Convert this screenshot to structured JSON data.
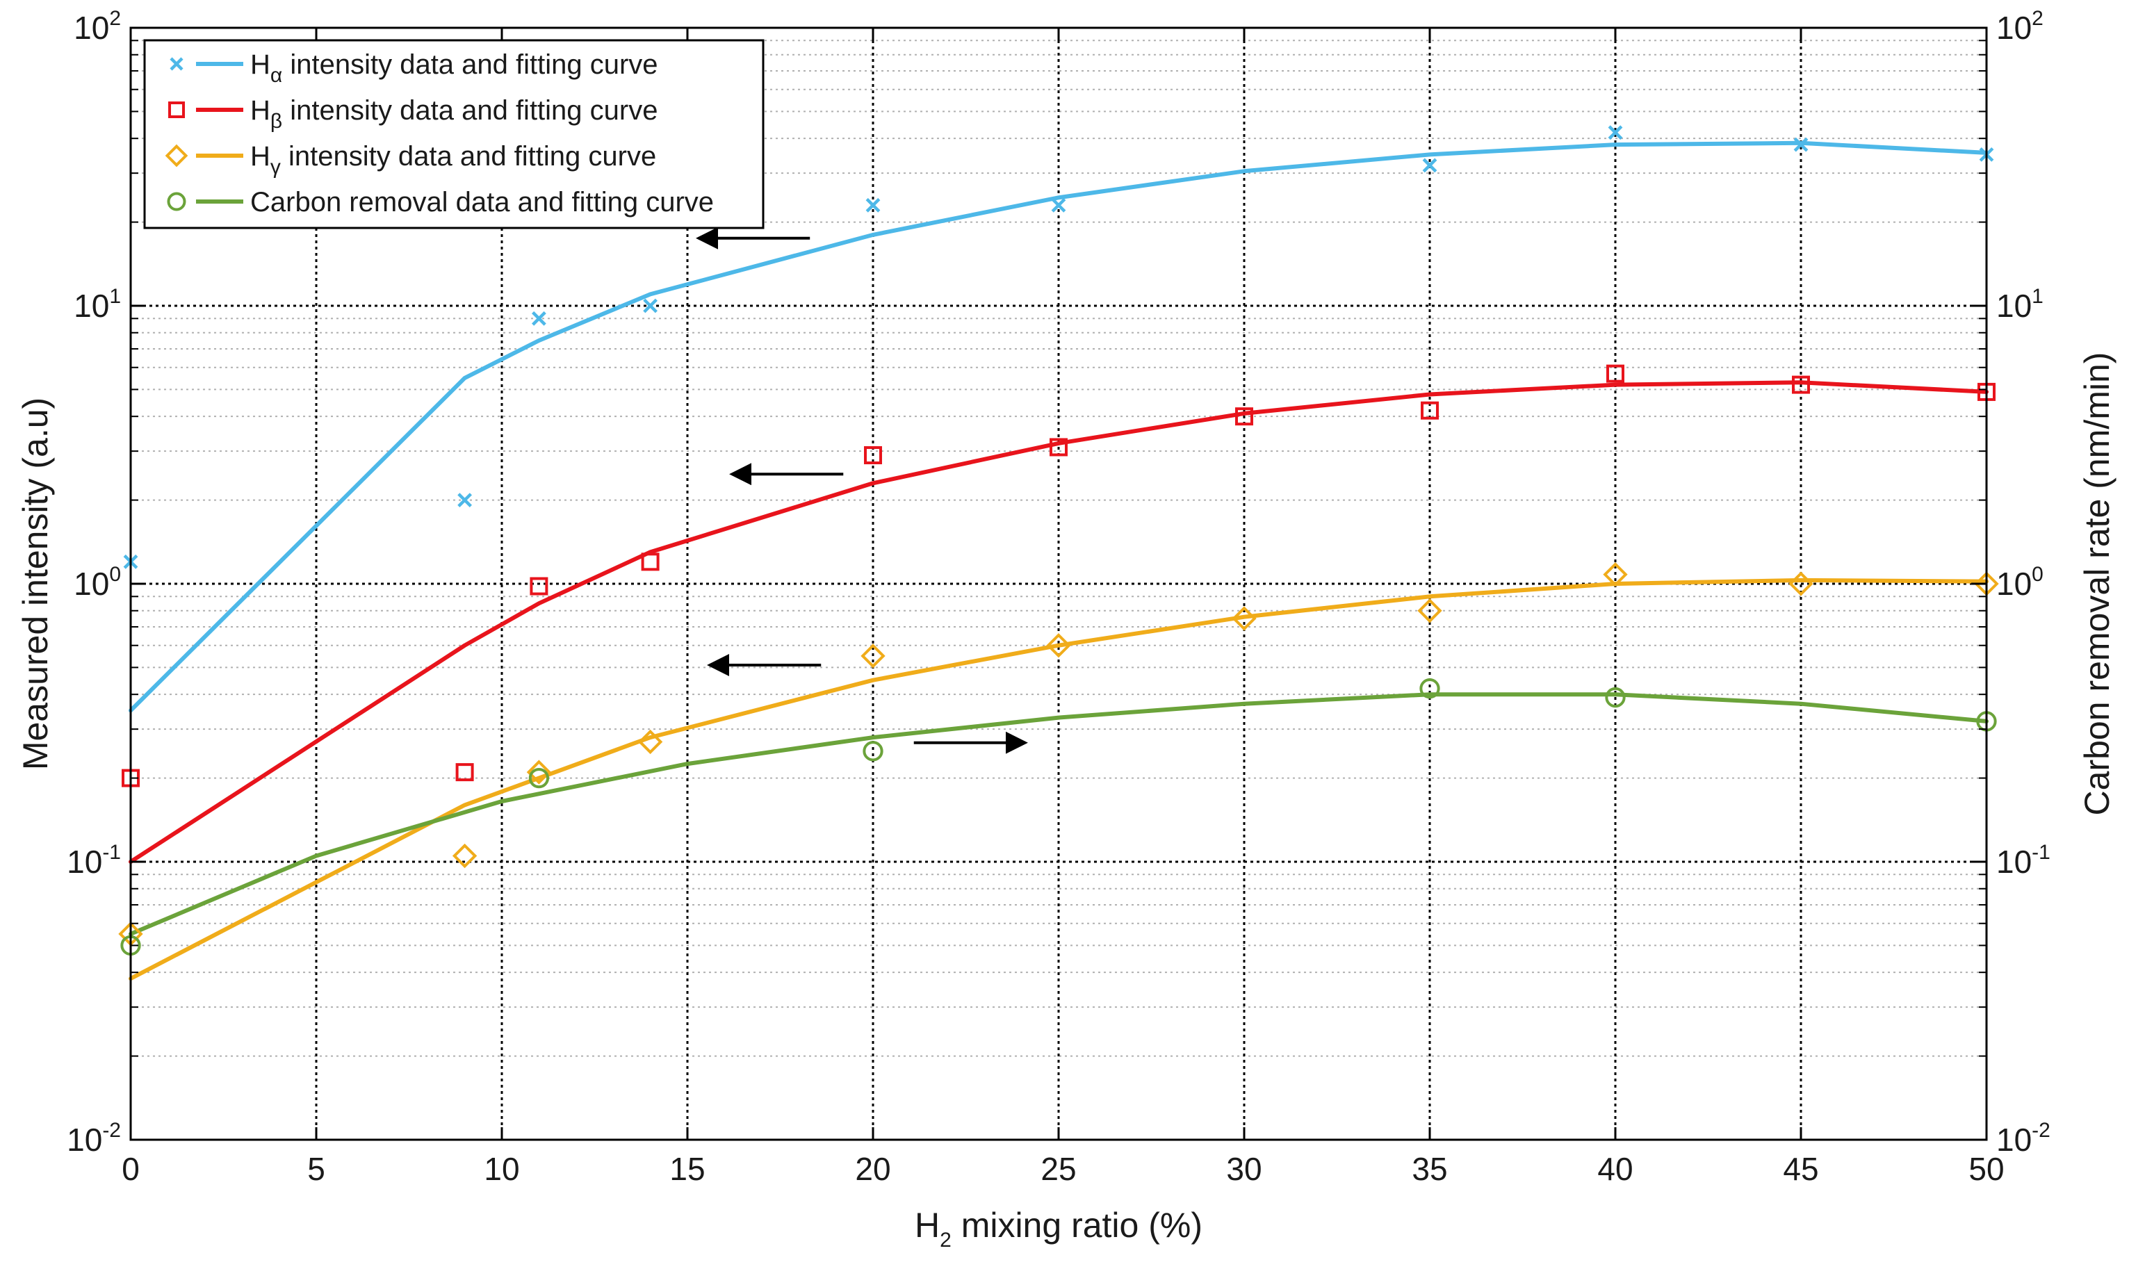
{
  "chart_data": {
    "type": "scatter",
    "title": "",
    "xlabel": "H",
    "xlabel_sub": "2",
    "xlabel_rest": " mixing ratio (%)",
    "ylabel_left": "Measured intensity (a.u)",
    "ylabel_right": "Carbon removal rate (nm/min)",
    "xlim": [
      0,
      50
    ],
    "ylim": [
      0.01,
      100
    ],
    "yscale": "log",
    "grid": true,
    "legend_position": "top-left",
    "x_ticks": [
      "0",
      "5",
      "10",
      "15",
      "20",
      "25",
      "30",
      "35",
      "40",
      "45",
      "50"
    ],
    "y_ticks": [
      {
        "base": "10",
        "exp": "-2"
      },
      {
        "base": "10",
        "exp": "-1"
      },
      {
        "base": "10",
        "exp": "0"
      },
      {
        "base": "10",
        "exp": "1"
      },
      {
        "base": "10",
        "exp": "2"
      }
    ],
    "series": [
      {
        "name": "H",
        "name_sub": "α",
        "name_rest": " intensity data and fitting curve",
        "marker": "x",
        "color": "#4db8e8",
        "data": [
          [
            0,
            1.2
          ],
          [
            9,
            2.0
          ],
          [
            11,
            9.0
          ],
          [
            14,
            10.0
          ],
          [
            20,
            23.0
          ],
          [
            25,
            23.0
          ],
          [
            35,
            32.0
          ],
          [
            40,
            42.0
          ],
          [
            45,
            38.0
          ],
          [
            50,
            35.0
          ]
        ],
        "fit": [
          [
            0,
            0.35
          ],
          [
            9,
            5.5
          ],
          [
            11,
            7.5
          ],
          [
            14,
            11.0
          ],
          [
            20,
            18.0
          ],
          [
            25,
            24.5
          ],
          [
            30,
            30.5
          ],
          [
            35,
            35.0
          ],
          [
            40,
            38.0
          ],
          [
            45,
            38.5
          ],
          [
            50,
            35.5
          ]
        ]
      },
      {
        "name": "H",
        "name_sub": "β",
        "name_rest": " intensity data and fitting curve",
        "marker": "square",
        "color": "#e8141c",
        "data": [
          [
            0,
            0.2
          ],
          [
            9,
            0.21
          ],
          [
            11,
            0.98
          ],
          [
            14,
            1.2
          ],
          [
            20,
            2.9
          ],
          [
            25,
            3.1
          ],
          [
            30,
            4.0
          ],
          [
            35,
            4.2
          ],
          [
            40,
            5.7
          ],
          [
            45,
            5.2
          ],
          [
            50,
            4.9
          ]
        ],
        "fit": [
          [
            0,
            0.1
          ],
          [
            9,
            0.6
          ],
          [
            11,
            0.85
          ],
          [
            14,
            1.3
          ],
          [
            20,
            2.3
          ],
          [
            25,
            3.2
          ],
          [
            30,
            4.1
          ],
          [
            35,
            4.8
          ],
          [
            40,
            5.2
          ],
          [
            45,
            5.3
          ],
          [
            50,
            4.9
          ]
        ]
      },
      {
        "name": "H",
        "name_sub": "γ",
        "name_rest": " intensity data and fitting curve",
        "marker": "diamond",
        "color": "#f0ac1a",
        "data": [
          [
            0,
            0.055
          ],
          [
            9,
            0.105
          ],
          [
            11,
            0.21
          ],
          [
            14,
            0.27
          ],
          [
            20,
            0.55
          ],
          [
            25,
            0.6
          ],
          [
            30,
            0.75
          ],
          [
            35,
            0.8
          ],
          [
            40,
            1.08
          ],
          [
            45,
            1.0
          ],
          [
            50,
            1.0
          ]
        ],
        "fit": [
          [
            0,
            0.038
          ],
          [
            9,
            0.16
          ],
          [
            11,
            0.2
          ],
          [
            14,
            0.28
          ],
          [
            20,
            0.45
          ],
          [
            25,
            0.6
          ],
          [
            30,
            0.76
          ],
          [
            35,
            0.9
          ],
          [
            40,
            1.0
          ],
          [
            45,
            1.03
          ],
          [
            50,
            1.02
          ]
        ]
      },
      {
        "name": "Carbon removal data and fitting curve",
        "name_sub": "",
        "name_rest": "",
        "marker": "circle",
        "color": "#6ba33a",
        "data": [
          [
            0,
            0.05
          ],
          [
            11,
            0.2
          ],
          [
            20,
            0.25
          ],
          [
            35,
            0.42
          ],
          [
            40,
            0.39
          ],
          [
            50,
            0.32
          ]
        ],
        "fit": [
          [
            0,
            0.055
          ],
          [
            5,
            0.105
          ],
          [
            10,
            0.165
          ],
          [
            15,
            0.225
          ],
          [
            20,
            0.28
          ],
          [
            25,
            0.33
          ],
          [
            30,
            0.37
          ],
          [
            35,
            0.4
          ],
          [
            40,
            0.4
          ],
          [
            45,
            0.37
          ],
          [
            50,
            0.32
          ]
        ]
      }
    ],
    "annotations": [
      {
        "type": "arrow",
        "direction": "left",
        "from": [
          18.3,
          17.5
        ],
        "to": [
          15.3,
          17.5
        ]
      },
      {
        "type": "arrow",
        "direction": "left",
        "from": [
          19.2,
          2.48
        ],
        "to": [
          16.2,
          2.48
        ]
      },
      {
        "type": "arrow",
        "direction": "left",
        "from": [
          18.6,
          0.51
        ],
        "to": [
          15.6,
          0.51
        ]
      },
      {
        "type": "arrow",
        "direction": "right",
        "from": [
          21.1,
          0.268
        ],
        "to": [
          24.1,
          0.268
        ]
      }
    ]
  }
}
